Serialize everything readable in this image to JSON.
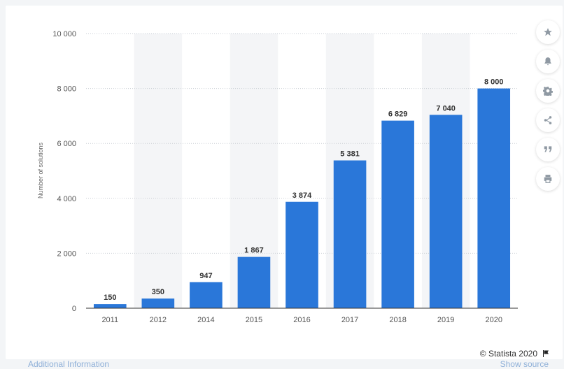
{
  "chart_data": {
    "type": "bar",
    "categories": [
      "2011",
      "2012",
      "2014",
      "2015",
      "2016",
      "2017",
      "2018",
      "2019",
      "2020"
    ],
    "values": [
      150,
      350,
      947,
      1867,
      3874,
      5381,
      6829,
      7040,
      8000
    ],
    "value_labels": [
      "150",
      "350",
      "947",
      "1 867",
      "3 874",
      "5 381",
      "6 829",
      "7 040",
      "8 000"
    ],
    "ylabel": "Number of solutions",
    "ylim": [
      0,
      10000
    ],
    "yticks": [
      0,
      2000,
      4000,
      6000,
      8000,
      10000
    ],
    "ytick_labels": [
      "0",
      "2 000",
      "4 000",
      "6 000",
      "8 000",
      "10 000"
    ],
    "bar_color": "#2a77d9",
    "band_color": "#f4f5f7",
    "grid": true
  },
  "toolbar": {
    "icons": [
      "star-icon",
      "bell-icon",
      "gear-icon",
      "share-icon",
      "quote-icon",
      "print-icon"
    ]
  },
  "footer": {
    "copyright": "© Statista 2020",
    "additional_info": "Additional Information",
    "show_source": "Show source"
  }
}
